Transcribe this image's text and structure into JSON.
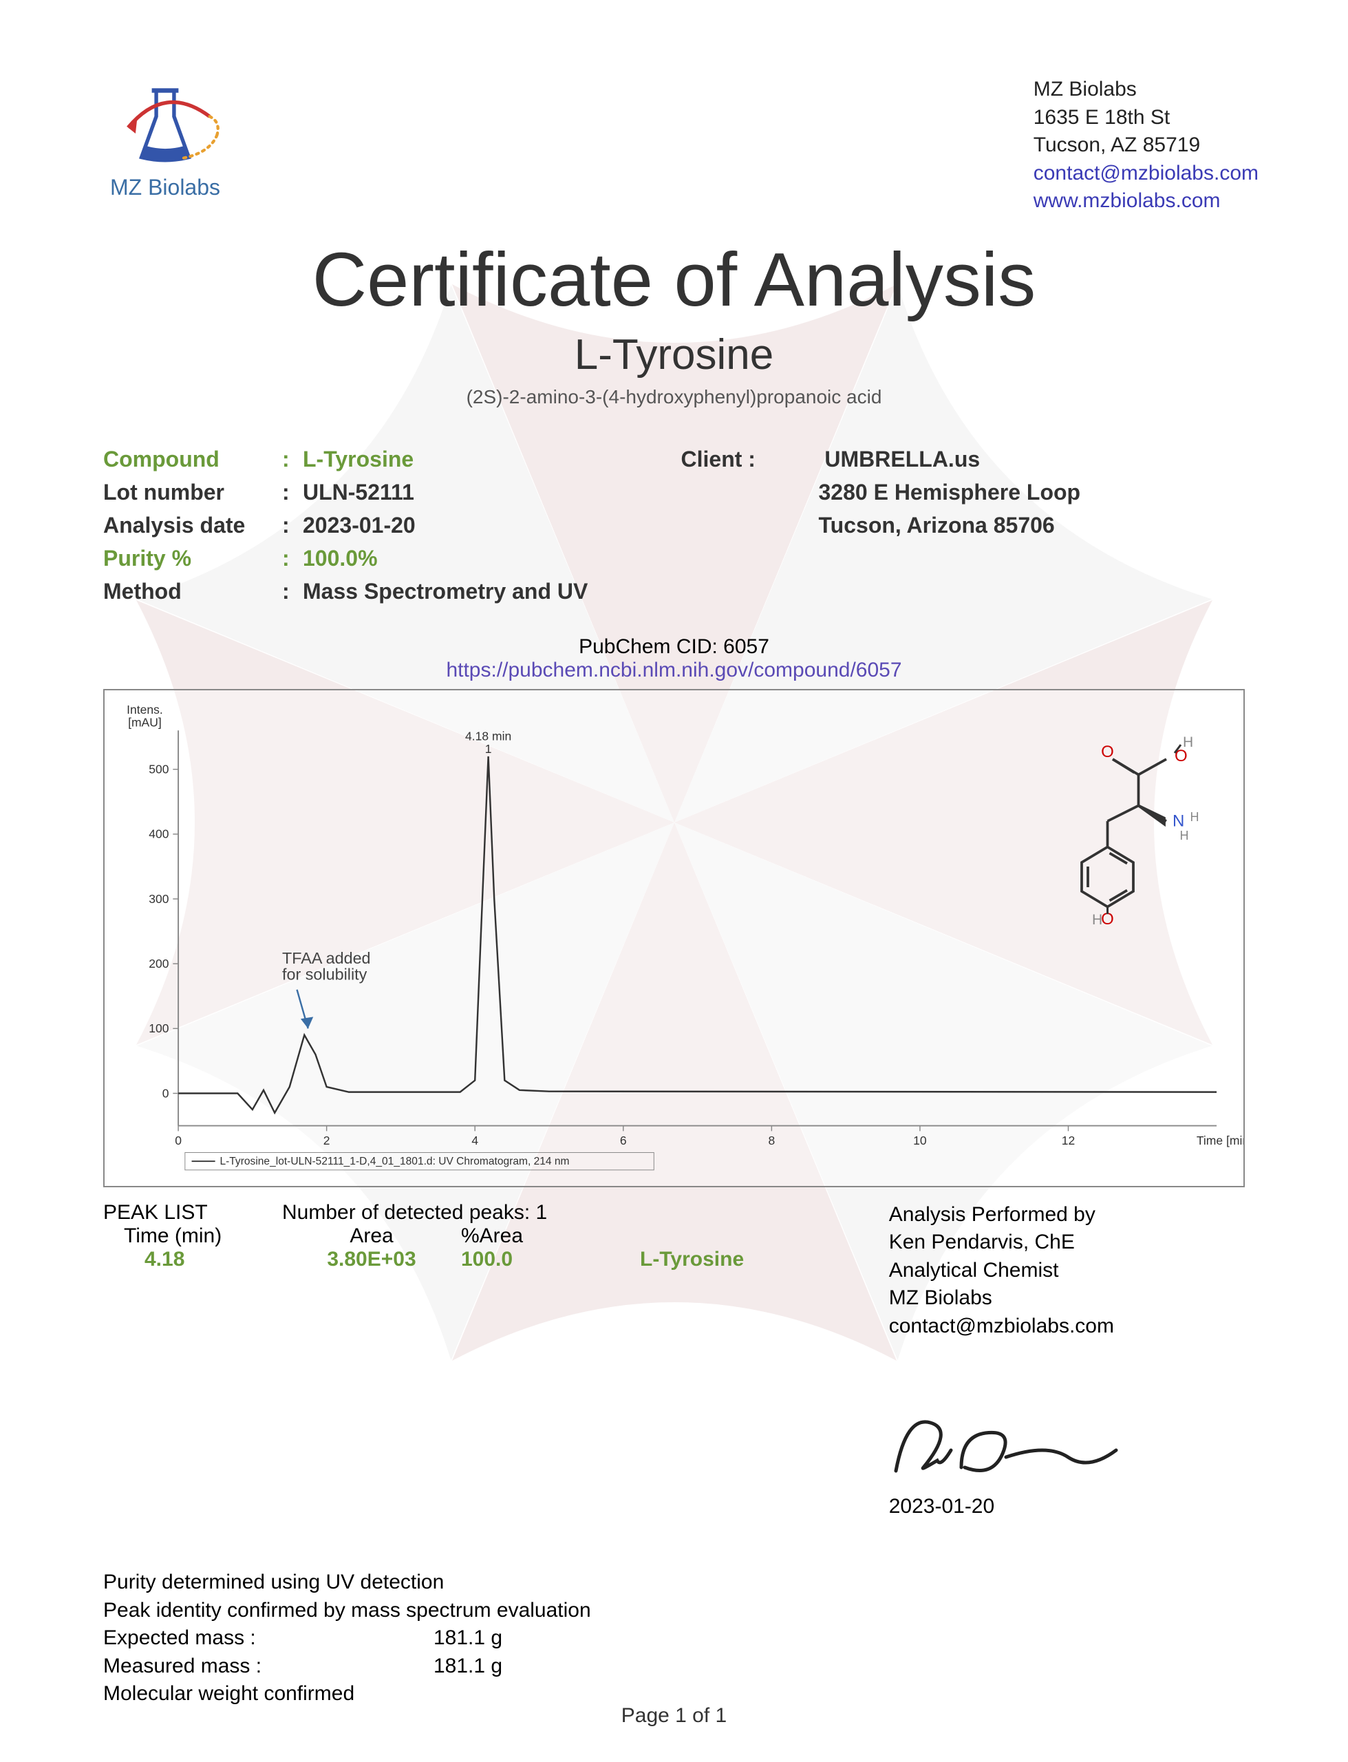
{
  "company": {
    "name": "MZ Biolabs",
    "addr1": "1635 E 18th St",
    "addr2": "Tucson, AZ 85719",
    "email": "contact@mzbiolabs.com",
    "web": "www.mzbiolabs.com",
    "logo_text": "MZ Biolabs",
    "logo_colors": {
      "flask": "#3355aa",
      "swirl1": "#cc3333",
      "swirl2": "#e8a030"
    }
  },
  "doc": {
    "title": "Certificate of Analysis",
    "subtitle": "L-Tyrosine",
    "chemname": "(2S)-2-amino-3-(4-hydroxyphenyl)propanoic acid"
  },
  "info": {
    "compound_label": "Compound",
    "compound_value": "L-Tyrosine",
    "lot_label": "Lot number",
    "lot_value": "ULN-52111",
    "date_label": "Analysis date",
    "date_value": "2023-01-20",
    "purity_label": "Purity %",
    "purity_value": "100.0%",
    "method_label": "Method",
    "method_value": "Mass Spectrometry and UV"
  },
  "client": {
    "label": "Client :",
    "name": "UMBRELLA.us",
    "addr1": "3280 E Hemisphere Loop",
    "addr2": "Tucson, Arizona 85706"
  },
  "pubchem": {
    "cid_text": "PubChem CID: 6057",
    "link": "https://pubchem.ncbi.nlm.nih.gov/compound/6057"
  },
  "chart": {
    "type": "line",
    "y_label": "Intens.\n[mAU]",
    "x_label": "Time [min]",
    "peak_label": "4.18 min\n1",
    "annotation": "TFAA added\nfor solubility",
    "legend": "L-Tyrosine_lot-ULN-52111_1-D,4_01_1801.d: UV Chromatogram, 214 nm",
    "x_ticks": [
      0,
      2,
      4,
      6,
      8,
      10,
      12
    ],
    "y_ticks": [
      0,
      100,
      200,
      300,
      400,
      500
    ],
    "xlim": [
      0,
      14
    ],
    "ylim": [
      -50,
      560
    ],
    "line_color": "#333333",
    "grid_color": "#888888",
    "background_color": "#ffffff",
    "font_size": 18,
    "data_points": [
      [
        0,
        0
      ],
      [
        0.8,
        0
      ],
      [
        1.0,
        -25
      ],
      [
        1.15,
        5
      ],
      [
        1.3,
        -30
      ],
      [
        1.5,
        10
      ],
      [
        1.7,
        90
      ],
      [
        1.85,
        60
      ],
      [
        2.0,
        10
      ],
      [
        2.3,
        2
      ],
      [
        3.8,
        2
      ],
      [
        4.0,
        20
      ],
      [
        4.1,
        300
      ],
      [
        4.18,
        520
      ],
      [
        4.26,
        300
      ],
      [
        4.4,
        20
      ],
      [
        4.6,
        5
      ],
      [
        5.0,
        3
      ],
      [
        14,
        2
      ]
    ],
    "arrow_color": "#3a6ea5"
  },
  "molecule": {
    "atom_O_color": "#cc0000",
    "atom_N_color": "#3355cc",
    "atom_H_color": "#888888",
    "bond_color": "#333333"
  },
  "peaks": {
    "header": "PEAK LIST",
    "detected": "Number of detected peaks: 1",
    "cols": {
      "time": "Time (min)",
      "area": "Area",
      "pct": "%Area"
    },
    "row": {
      "time": "4.18",
      "area": "3.80E+03",
      "pct": "100.0",
      "name": "L-Tyrosine"
    }
  },
  "analyst": {
    "l1": "Analysis Performed by",
    "l2": "Ken Pendarvis, ChE",
    "l3": "Analytical Chemist",
    "l4": "MZ Biolabs",
    "l5": "contact@mzbiolabs.com",
    "date": "2023-01-20"
  },
  "confirm": {
    "l1": "Purity determined using UV detection",
    "l2": "Peak identity confirmed by mass spectrum evaluation",
    "expected_k": "Expected mass :",
    "expected_v": "181.1 g",
    "measured_k": "Measured mass :",
    "measured_v": "181.1 g",
    "l5": "Molecular weight confirmed"
  },
  "footer": "Page 1 of 1",
  "watermark": {
    "red": "#a86060",
    "grey": "#bcbcbc"
  }
}
